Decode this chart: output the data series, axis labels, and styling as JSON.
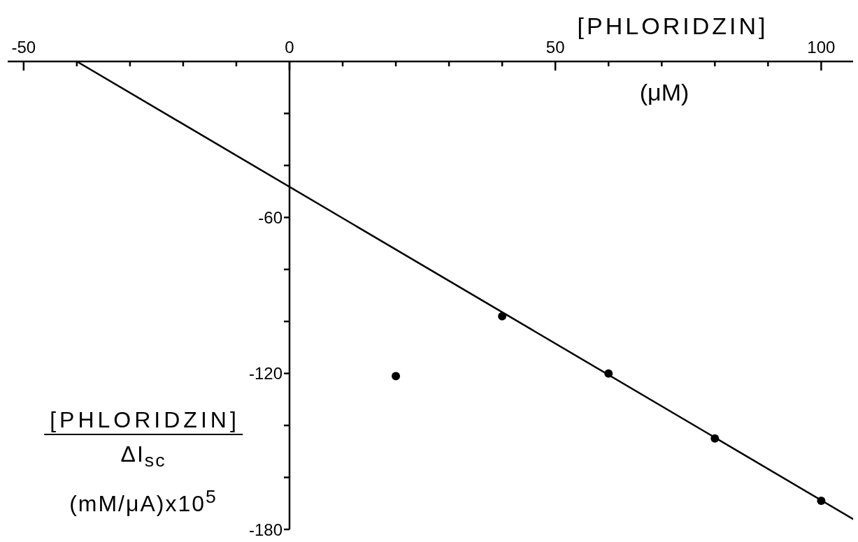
{
  "chart_data": {
    "type": "scatter",
    "xlabel": "[PHLORIDZIN] (μM)",
    "ylabel": "[PHLORIDZIN] ΔI$_{sc}$ (mM/μA)x10$^{5}$",
    "xlim": [
      -53,
      106
    ],
    "xticks": [
      -50,
      {
        "value": -40,
        "label": null
      },
      {
        "value": -30,
        "label": null
      },
      {
        "value": -20,
        "label": null
      },
      {
        "value": -10,
        "label": null
      },
      0,
      {
        "value": 10,
        "label": null
      },
      {
        "value": 20,
        "label": null
      },
      {
        "value": 30,
        "label": null
      },
      {
        "value": 40,
        "label": null
      },
      50,
      {
        "value": 60,
        "label": null
      },
      {
        "value": 70,
        "label": null
      },
      {
        "value": 80,
        "label": null
      },
      {
        "value": 90,
        "label": null
      },
      100
    ],
    "ylim": [
      -180,
      0
    ],
    "yticks": [
      {
        "value": -20,
        "label": null
      },
      {
        "value": -40,
        "label": null
      },
      -60,
      {
        "value": -80,
        "label": null
      },
      {
        "value": -100,
        "label": null
      },
      -120,
      {
        "value": -140,
        "label": null
      },
      {
        "value": -160,
        "label": null
      },
      -180
    ],
    "series": [
      {
        "type": "line",
        "x": [
          -40,
          106
        ],
        "values": [
          0,
          -176
        ],
        "color": "#000000",
        "marker": "none",
        "line_style": "solid"
      },
      {
        "x": [
          20,
          40,
          60,
          80,
          100
        ],
        "values": [
          -121,
          -98,
          -120,
          -145,
          -169
        ],
        "color": "#000000",
        "marker": "circle"
      }
    ]
  }
}
